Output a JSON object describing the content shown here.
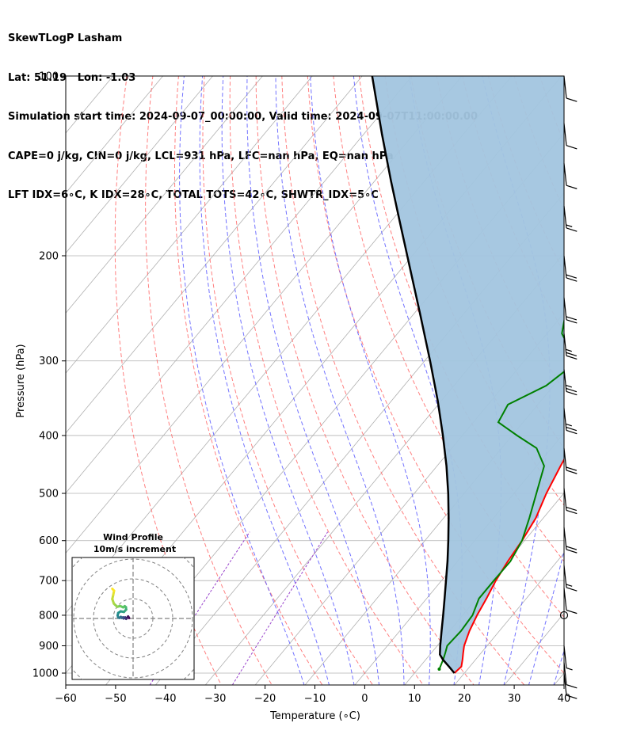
{
  "header": {
    "line1": "SkewTLogP Lasham",
    "line2": "Lat: 51.19   Lon: -1.03",
    "line3": "Simulation start time: 2024-09-07_00:00:00, Valid time: 2024-09-07T11:00:00.00",
    "line4": "CAPE=0 j/kg, CIN=0 j/kg, LCL=931 hPa, LFC=nan hPa, EQ=nan hPa",
    "line5": "LFT IDX=6∘C, K IDX=28∘C, TOTAL TOTS=42∘C, SHWTR_IDX=5∘C"
  },
  "colors": {
    "temperature": "#ff0000",
    "dewpoint": "#008000",
    "parcel": "#000000",
    "shade": "#a2c5df",
    "dry_adiabat": "#ff6a6a",
    "moist_adiabat": "#5a5aff",
    "mixing_ratio": "#9944cc",
    "isotherm": "#b0b0b0",
    "grid": "#b0b0b0"
  },
  "chart_data": {
    "type": "skewt",
    "xlabel": "Temperature (∘C)",
    "ylabel": "Pressure (hPa)",
    "xlim": [
      -60,
      40
    ],
    "ylim": [
      1050,
      100
    ],
    "x_ticks": [
      -60,
      -50,
      -40,
      -30,
      -20,
      -10,
      0,
      10,
      20,
      30,
      40
    ],
    "y_ticks": [
      100,
      200,
      300,
      400,
      500,
      600,
      700,
      800,
      900,
      1000
    ],
    "grid": true,
    "temperature": [
      [
        1000,
        18.0
      ],
      [
        975,
        18.3
      ],
      [
        950,
        17.4
      ],
      [
        925,
        16.4
      ],
      [
        900,
        15.4
      ],
      [
        850,
        14.0
      ],
      [
        800,
        12.9
      ],
      [
        750,
        12.0
      ],
      [
        700,
        10.9
      ],
      [
        650,
        10.1
      ],
      [
        600,
        9.5
      ],
      [
        550,
        8.5
      ],
      [
        500,
        6.5
      ],
      [
        450,
        4.8
      ],
      [
        420,
        3.8
      ],
      [
        400,
        3.9
      ],
      [
        380,
        3.2
      ],
      [
        350,
        1.0
      ],
      [
        320,
        -3.0
      ],
      [
        300,
        -6.0
      ],
      [
        280,
        -7.0
      ],
      [
        260,
        -7.7
      ],
      [
        240,
        -9.2
      ],
      [
        220,
        -11.0
      ],
      [
        200,
        -11.0
      ],
      [
        190,
        -8.8
      ],
      [
        180,
        -9.1
      ],
      [
        165,
        -8.2
      ],
      [
        155,
        -8.0
      ],
      [
        145,
        -7.0
      ],
      [
        135,
        -6.9
      ],
      [
        125,
        -5.7
      ],
      [
        115,
        -6.3
      ],
      [
        108,
        -6.5
      ],
      [
        100,
        -6.8
      ]
    ],
    "dewpoint": [
      [
        985,
        14.3
      ],
      [
        950,
        13.5
      ],
      [
        925,
        12.8
      ],
      [
        900,
        12.0
      ],
      [
        850,
        12.3
      ],
      [
        800,
        12.0
      ],
      [
        750,
        10.5
      ],
      [
        700,
        10.5
      ],
      [
        650,
        10.6
      ],
      [
        600,
        9.5
      ],
      [
        550,
        7.2
      ],
      [
        500,
        4.5
      ],
      [
        450,
        1.5
      ],
      [
        420,
        -3.0
      ],
      [
        400,
        -9.0
      ],
      [
        380,
        -15.0
      ],
      [
        355,
        -16.0
      ],
      [
        330,
        -11.5
      ],
      [
        310,
        -10.0
      ],
      [
        290,
        -12.0
      ],
      [
        270,
        -17.0
      ],
      [
        240,
        -21.0
      ],
      [
        210,
        -24.5
      ],
      [
        200,
        -25.0
      ],
      [
        185,
        -28.0
      ],
      [
        170,
        -33.0
      ],
      [
        160,
        -37.0
      ],
      [
        150,
        -37.0
      ],
      [
        135,
        -40.0
      ],
      [
        120,
        -43.0
      ],
      [
        110,
        -45.0
      ],
      [
        100,
        -47.0
      ]
    ],
    "parcel": [
      [
        1000,
        18.0
      ],
      [
        975,
        15.8
      ],
      [
        950,
        13.5
      ],
      [
        931,
        12.0
      ],
      [
        900,
        10.6
      ],
      [
        850,
        8.4
      ],
      [
        800,
        6.1
      ],
      [
        750,
        3.6
      ],
      [
        700,
        0.9
      ],
      [
        650,
        -2.0
      ],
      [
        600,
        -5.3
      ],
      [
        550,
        -9.0
      ],
      [
        500,
        -13.2
      ],
      [
        450,
        -18.1
      ],
      [
        400,
        -23.9
      ],
      [
        350,
        -30.7
      ],
      [
        300,
        -38.9
      ],
      [
        250,
        -48.8
      ],
      [
        200,
        -61.0
      ],
      [
        175,
        -68.3
      ],
      [
        150,
        -76.7
      ],
      [
        125,
        -86.4
      ],
      [
        100,
        -98.0
      ]
    ],
    "wind_barbs": [
      {
        "p": 100,
        "speed_kt": 10
      },
      {
        "p": 120,
        "speed_kt": 10
      },
      {
        "p": 140,
        "speed_kt": 10
      },
      {
        "p": 165,
        "speed_kt": 15
      },
      {
        "p": 200,
        "speed_kt": 20
      },
      {
        "p": 235,
        "speed_kt": 20
      },
      {
        "p": 270,
        "speed_kt": 25
      },
      {
        "p": 310,
        "speed_kt": 25
      },
      {
        "p": 360,
        "speed_kt": 25
      },
      {
        "p": 420,
        "speed_kt": 20
      },
      {
        "p": 490,
        "speed_kt": 20
      },
      {
        "p": 570,
        "speed_kt": 20
      },
      {
        "p": 660,
        "speed_kt": 15
      },
      {
        "p": 720,
        "speed_kt": 10
      },
      {
        "p": 800,
        "speed_kt": 0
      },
      {
        "p": 900,
        "speed_kt": 5
      },
      {
        "p": 960,
        "speed_kt": 10
      },
      {
        "p": 1000,
        "speed_kt": 10
      }
    ],
    "hodograph": {
      "title": "Wind Profile",
      "subtitle": "10m/s increment",
      "u": [
        -2.0,
        -2.5,
        -3.0,
        -3.5,
        -4.0,
        -4.8,
        -5.0,
        -5.8,
        -6.2,
        -6.8,
        -7.5,
        -7.8,
        -7.5,
        -6.3,
        -4.6,
        -3.5,
        -3.6,
        -4.2,
        -5.0,
        -6.5,
        -8.0,
        -9.7,
        -10.5,
        -10.0,
        -9.6,
        -10.5
      ],
      "v": [
        0.2,
        1.0,
        0.3,
        -0.2,
        0.5,
        0.0,
        0.6,
        0.3,
        0.8,
        0.3,
        0.5,
        1.5,
        2.8,
        3.6,
        3.3,
        4.5,
        5.7,
        6.2,
        5.6,
        6.3,
        5.9,
        7.5,
        9.8,
        12.0,
        14.0,
        15.0
      ]
    }
  }
}
